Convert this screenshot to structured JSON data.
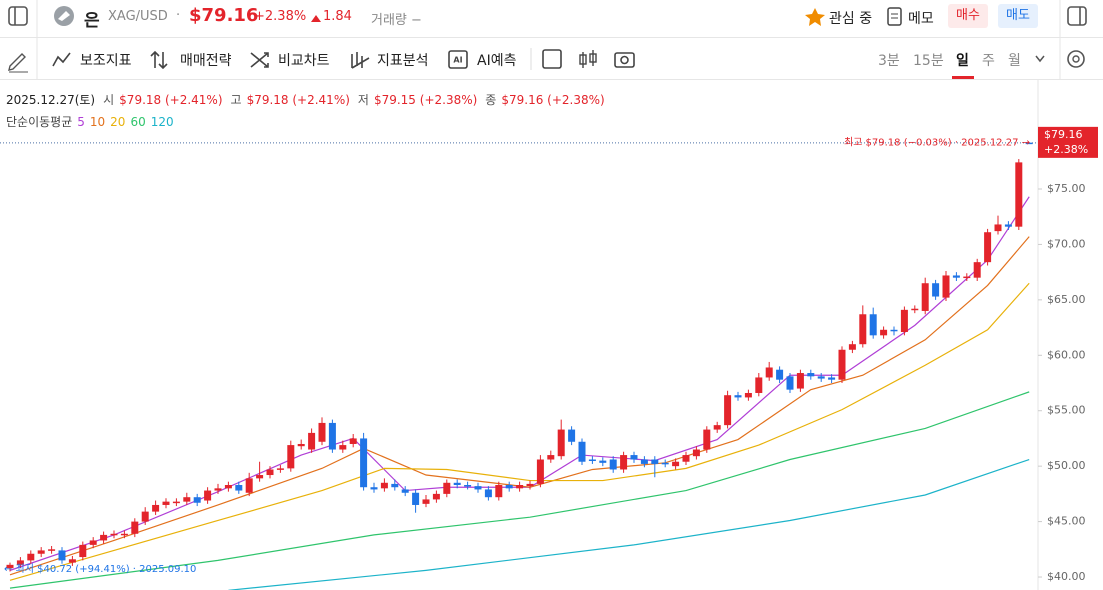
{
  "header": {
    "name": "은",
    "symbol": "XAG/USD",
    "sep": "·",
    "price": "$79.16",
    "change_pct": "+2.38%",
    "change": "1.84",
    "volume": "거래량 −",
    "watch": "관심 중",
    "memo": "메모",
    "buy": "매수",
    "sell": "매도"
  },
  "toolbar": {
    "items": [
      "보조지표",
      "매매전략",
      "비교차트",
      "지표분석",
      "AI예측"
    ],
    "periods": [
      "3분",
      "15분",
      "일",
      "주",
      "월"
    ],
    "active_period": 2
  },
  "info": {
    "date": "2025.12.27(토)",
    "fields": [
      {
        "label": "시",
        "value": "$79.18 (+2.41%)"
      },
      {
        "label": "고",
        "value": "$79.18 (+2.41%)"
      },
      {
        "label": "저",
        "value": "$79.15 (+2.38%)"
      },
      {
        "label": "종",
        "value": "$79.16 (+2.38%)"
      }
    ]
  },
  "chart_data": {
    "type": "candlestick",
    "ylim": [
      38.83,
      84.83
    ],
    "yticks": [
      {
        "value": 40,
        "label": "$40.00"
      },
      {
        "value": 45,
        "label": "$45.00"
      },
      {
        "value": 50,
        "label": "$50.00"
      },
      {
        "value": 55,
        "label": "$55.00"
      },
      {
        "value": 60,
        "label": "$60.00"
      },
      {
        "value": 65,
        "label": "$65.00"
      },
      {
        "value": 70,
        "label": "$70.00"
      },
      {
        "value": 75,
        "label": "$75.00"
      }
    ],
    "up_color": "#e3242b",
    "down_color": "#1f74e6",
    "open": [
      40.8,
      41.1,
      41.5,
      42.1,
      42.4,
      42.4,
      41.3,
      41.8,
      42.9,
      43.3,
      43.8,
      43.8,
      43.9,
      45.0,
      45.9,
      46.5,
      46.7,
      46.8,
      47.2,
      46.9,
      47.8,
      48.0,
      48.3,
      47.6,
      48.9,
      49.2,
      49.7,
      49.8,
      51.8,
      51.5,
      52.2,
      53.9,
      51.5,
      52.0,
      52.5,
      48.1,
      48.0,
      48.4,
      47.9,
      47.6,
      46.6,
      47.0,
      47.5,
      48.5,
      48.3,
      48.2,
      47.9,
      47.2,
      48.3,
      48.0,
      48.2,
      48.4,
      50.6,
      50.9,
      53.3,
      52.2,
      50.6,
      50.5,
      50.6,
      49.7,
      51.0,
      50.6,
      50.6,
      50.3,
      50.0,
      50.4,
      50.9,
      51.5,
      53.3,
      53.7,
      56.4,
      56.2,
      56.6,
      58.0,
      58.7,
      58.1,
      57.0,
      58.4,
      58.1,
      58.0,
      57.8,
      60.5,
      61.0,
      63.7,
      61.8,
      62.3,
      62.1,
      64.1,
      64.0,
      66.5,
      65.2,
      67.2,
      67.0,
      67.0,
      68.4,
      71.2,
      71.8,
      71.6,
      79.18
    ],
    "high": [
      41.3,
      41.8,
      42.4,
      42.7,
      42.8,
      42.7,
      41.9,
      43.2,
      43.6,
      44.1,
      44.2,
      44.2,
      45.3,
      46.3,
      46.9,
      47.1,
      47.1,
      47.6,
      47.5,
      48.1,
      48.4,
      48.6,
      48.6,
      49.4,
      50.4,
      50.0,
      50.1,
      52.3,
      52.4,
      53.4,
      54.4,
      54.2,
      52.3,
      52.9,
      53.0,
      48.5,
      48.9,
      48.8,
      48.2,
      47.9,
      47.4,
      47.8,
      48.8,
      48.8,
      48.6,
      48.5,
      48.2,
      48.6,
      48.6,
      48.6,
      48.7,
      51.0,
      51.4,
      54.2,
      53.6,
      52.5,
      50.9,
      50.8,
      50.9,
      51.3,
      51.3,
      50.9,
      50.9,
      50.6,
      50.7,
      51.3,
      51.8,
      53.6,
      54.0,
      56.8,
      56.7,
      56.9,
      58.4,
      59.4,
      59.0,
      58.4,
      58.7,
      58.7,
      58.4,
      58.3,
      60.8,
      61.3,
      64.5,
      64.3,
      62.6,
      62.6,
      64.4,
      64.5,
      67.0,
      66.8,
      67.6,
      67.5,
      67.4,
      68.7,
      71.4,
      72.6,
      72.1,
      77.7,
      79.18
    ],
    "low": [
      40.5,
      40.8,
      41.2,
      41.8,
      42.1,
      41.2,
      41.0,
      41.5,
      42.6,
      43.0,
      43.5,
      43.5,
      43.6,
      44.7,
      45.6,
      46.2,
      46.4,
      46.5,
      46.4,
      46.6,
      47.5,
      47.7,
      47.5,
      47.3,
      48.6,
      48.9,
      49.4,
      49.5,
      51.5,
      51.2,
      51.9,
      51.2,
      51.2,
      51.7,
      47.8,
      47.6,
      47.7,
      47.8,
      47.3,
      45.8,
      46.3,
      46.7,
      47.2,
      48.0,
      47.9,
      47.6,
      46.9,
      46.9,
      47.7,
      47.7,
      47.9,
      48.1,
      50.3,
      50.6,
      51.9,
      50.1,
      50.2,
      50.0,
      49.4,
      49.4,
      50.3,
      49.9,
      49.0,
      49.9,
      49.7,
      50.1,
      50.6,
      51.2,
      53.0,
      53.4,
      55.9,
      55.9,
      56.3,
      57.7,
      57.5,
      56.6,
      56.7,
      57.8,
      57.6,
      57.5,
      57.5,
      60.2,
      60.7,
      61.5,
      61.5,
      61.8,
      61.8,
      63.8,
      63.7,
      65.0,
      64.9,
      66.7,
      66.7,
      66.7,
      68.1,
      70.9,
      71.3,
      71.3,
      79.15
    ],
    "close": [
      41.1,
      41.5,
      42.1,
      42.4,
      42.5,
      41.5,
      41.6,
      42.9,
      43.3,
      43.8,
      43.9,
      43.9,
      45.0,
      45.9,
      46.5,
      46.8,
      46.8,
      47.2,
      46.7,
      47.8,
      48.0,
      48.3,
      47.8,
      48.9,
      49.2,
      49.7,
      49.8,
      51.9,
      52.0,
      53.0,
      53.9,
      51.5,
      51.9,
      52.5,
      48.1,
      47.9,
      48.5,
      48.1,
      47.6,
      46.5,
      47.0,
      47.5,
      48.5,
      48.3,
      48.2,
      47.9,
      47.2,
      48.3,
      48.0,
      48.3,
      48.4,
      50.6,
      51.0,
      53.3,
      52.2,
      50.4,
      50.5,
      50.3,
      49.7,
      51.0,
      50.6,
      50.2,
      50.2,
      50.2,
      50.4,
      51.0,
      51.5,
      53.3,
      53.7,
      56.4,
      56.2,
      56.6,
      58.0,
      58.9,
      57.8,
      56.9,
      58.4,
      58.1,
      57.9,
      57.8,
      60.5,
      61.0,
      63.7,
      61.8,
      62.3,
      62.2,
      64.1,
      64.2,
      66.5,
      65.3,
      67.2,
      67.0,
      67.1,
      68.4,
      71.1,
      71.8,
      71.6,
      77.4,
      79.16
    ],
    "ma_label": "단순이동평균",
    "ma": [
      {
        "name": "5",
        "color": "#b03fd6",
        "x": [
          0,
          10,
          20,
          28,
          33,
          38,
          42,
          50,
          55,
          62,
          68,
          75,
          80,
          87,
          94,
          98
        ],
        "values": [
          40.6,
          43.8,
          47.7,
          51.0,
          52.5,
          47.8,
          48.1,
          48.1,
          51.0,
          50.5,
          52.4,
          58.2,
          58.2,
          62.7,
          68.6,
          74.3
        ]
      },
      {
        "name": "10",
        "color": "#e2711d",
        "x": [
          0,
          10,
          20,
          30,
          34,
          40,
          50,
          56,
          63,
          70,
          77,
          82,
          88,
          94,
          98
        ],
        "values": [
          40.2,
          43.3,
          46.5,
          49.8,
          51.6,
          49.2,
          48.1,
          49.7,
          50.3,
          52.4,
          56.9,
          58.2,
          61.4,
          66.3,
          70.7
        ]
      },
      {
        "name": "20",
        "color": "#e8b10a",
        "x": [
          0,
          10,
          20,
          30,
          36,
          42,
          50,
          57,
          65,
          72,
          80,
          88,
          94,
          98
        ],
        "values": [
          39.7,
          42.4,
          45.1,
          47.8,
          49.8,
          49.7,
          48.7,
          48.7,
          49.8,
          51.9,
          55.1,
          59.1,
          62.3,
          66.5
        ]
      },
      {
        "name": "60",
        "color": "#2fc46c",
        "x": [
          0,
          20,
          35,
          50,
          65,
          75,
          88,
          98
        ],
        "values": [
          39.0,
          41.5,
          43.8,
          45.4,
          47.8,
          50.6,
          53.4,
          56.7
        ]
      },
      {
        "name": "120",
        "color": "#1cb3c9",
        "x": [
          21,
          40,
          60,
          75,
          88,
          98
        ],
        "values": [
          38.8,
          40.6,
          42.9,
          45.1,
          47.4,
          50.6
        ]
      }
    ],
    "last_price": {
      "value": 79.16,
      "label": "$79.16",
      "change": "+2.38%"
    },
    "high_note": {
      "value": 79.18,
      "text": "최고 $79.18 (−0.03%) · 2025.12.27 →"
    },
    "low_note": {
      "value": 40.72,
      "text": "← 최저 $40.72 (+94.41%) · 2025.09.10"
    }
  }
}
